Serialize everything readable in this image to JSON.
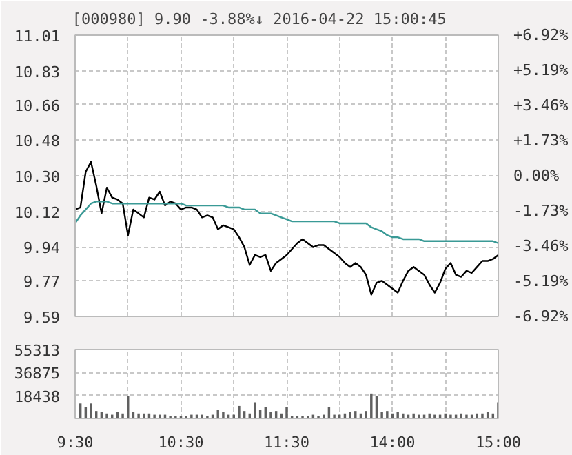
{
  "chart_data": [
    {
      "type": "line",
      "title": "[000980]   9.90   -3.88%↓   2016-04-22 15:00:45",
      "ylim": [
        9.59,
        11.01
      ],
      "categories": [
        null,
        null,
        null,
        null,
        null,
        null,
        null,
        null,
        null,
        null,
        null,
        null,
        null,
        null,
        null,
        null,
        null,
        null,
        null,
        null,
        null,
        null,
        null,
        null,
        null,
        null,
        null,
        null,
        null,
        null,
        null,
        null,
        null,
        null,
        null,
        null,
        null,
        null,
        null,
        null,
        null,
        null,
        null,
        null,
        null,
        null,
        null,
        null,
        null,
        null,
        null,
        null,
        null,
        null,
        null,
        null,
        null,
        null,
        null,
        null,
        null,
        null,
        null,
        null,
        null,
        null,
        null,
        null,
        null,
        null,
        null,
        null,
        null,
        null,
        null,
        null,
        null,
        null,
        null,
        null,
        null
      ],
      "yticks": [
        9.59,
        9.77,
        9.94,
        10.12,
        {
          "value": 10.3,
          "label": "10.30"
        },
        10.48,
        10.66,
        10.83,
        11.01
      ],
      "y2lim": [
        -6.92,
        6.92
      ],
      "y2ticks": [
        {
          "value": -6.92,
          "label": "-6.92%"
        },
        {
          "value": -5.19,
          "label": "-5.19%"
        },
        {
          "value": -3.46,
          "label": "-3.46%"
        },
        {
          "value": -1.73,
          "label": "-1.73%"
        },
        {
          "value": 0,
          "label": "0.00%"
        },
        {
          "value": 1.73,
          "label": "+1.73%"
        },
        {
          "value": 3.46,
          "label": "+3.46%"
        },
        {
          "value": 5.19,
          "label": "+5.19%"
        },
        {
          "value": 6.92,
          "label": "+6.92%"
        }
      ],
      "tick_labels": "y",
      "grid": true,
      "series": [
        {
          "color": "#000000",
          "values": [
            10.13,
            10.14,
            10.32,
            10.37,
            10.25,
            10.11,
            10.24,
            10.19,
            10.18,
            10.16,
            10.0,
            10.13,
            10.11,
            10.09,
            10.19,
            10.18,
            10.22,
            10.15,
            10.17,
            10.16,
            10.13,
            10.14,
            10.14,
            10.13,
            10.09,
            10.1,
            10.09,
            10.03,
            10.05,
            10.04,
            10.03,
            9.99,
            9.94,
            9.85,
            9.9,
            9.89,
            9.9,
            9.82,
            9.86,
            9.88,
            9.9,
            9.93,
            9.96,
            9.98,
            9.96,
            9.94,
            9.95,
            9.95,
            9.93,
            9.91,
            9.89,
            9.86,
            9.84,
            9.86,
            9.84,
            9.8,
            9.7,
            9.76,
            9.77,
            9.75,
            9.73,
            9.71,
            9.77,
            9.82,
            9.84,
            9.82,
            9.8,
            9.75,
            9.71,
            9.76,
            9.83,
            9.86,
            9.8,
            9.79,
            9.82,
            9.81,
            9.84,
            9.87,
            9.87,
            9.88,
            9.9
          ]
        },
        {
          "color": "#3a9a96",
          "values": [
            10.06,
            10.1,
            10.13,
            10.16,
            10.17,
            10.17,
            10.17,
            10.16,
            10.16,
            10.16,
            10.16,
            10.16,
            10.16,
            10.16,
            10.16,
            10.16,
            10.16,
            10.16,
            10.16,
            10.16,
            10.16,
            10.15,
            10.15,
            10.15,
            10.15,
            10.15,
            10.15,
            10.15,
            10.15,
            10.14,
            10.14,
            10.14,
            10.13,
            10.13,
            10.13,
            10.11,
            10.11,
            10.11,
            10.1,
            10.09,
            10.08,
            10.07,
            10.07,
            10.07,
            10.07,
            10.07,
            10.07,
            10.07,
            10.07,
            10.07,
            10.06,
            10.06,
            10.06,
            10.06,
            10.06,
            10.06,
            10.04,
            10.03,
            10.02,
            10.0,
            9.99,
            9.99,
            9.98,
            9.98,
            9.98,
            9.98,
            9.97,
            9.97,
            9.97,
            9.97,
            9.97,
            9.97,
            9.97,
            9.97,
            9.97,
            9.97,
            9.97,
            9.97,
            9.97,
            9.97,
            9.96
          ]
        }
      ]
    },
    {
      "type": "bar",
      "ylim": [
        0,
        55313
      ],
      "yticks": [
        18438,
        36875,
        55313
      ],
      "grid": true,
      "color": "#606060",
      "categories": [
        "9:30",
        null,
        null,
        null,
        null,
        null,
        null,
        null,
        null,
        null,
        null,
        null,
        null,
        null,
        null,
        null,
        null,
        null,
        null,
        null,
        "10:30",
        null,
        null,
        null,
        null,
        null,
        null,
        null,
        null,
        null,
        null,
        null,
        null,
        null,
        null,
        null,
        null,
        null,
        null,
        null,
        "11:30",
        null,
        null,
        null,
        null,
        null,
        null,
        null,
        null,
        null,
        null,
        null,
        null,
        null,
        null,
        null,
        null,
        null,
        null,
        null,
        "14:00",
        null,
        null,
        null,
        null,
        null,
        null,
        null,
        null,
        null,
        null,
        null,
        null,
        null,
        null,
        null,
        null,
        null,
        null,
        null,
        "15:00"
      ],
      "values": [
        55000,
        12000,
        9000,
        12000,
        6000,
        5000,
        4000,
        3000,
        5000,
        4000,
        18000,
        5000,
        4000,
        4000,
        4000,
        3000,
        3000,
        3000,
        2000,
        2000,
        2000,
        2000,
        3000,
        3000,
        3000,
        2000,
        3000,
        7000,
        5000,
        3000,
        3000,
        10000,
        6000,
        4000,
        13000,
        7000,
        9000,
        5000,
        6000,
        4000,
        9000,
        2000,
        2000,
        2000,
        2000,
        3000,
        2000,
        3000,
        9000,
        3000,
        3000,
        4000,
        5000,
        6000,
        4000,
        6000,
        20000,
        18000,
        5000,
        6000,
        4000,
        5000,
        4000,
        3000,
        4000,
        3000,
        3000,
        4000,
        3000,
        3000,
        4000,
        3000,
        3000,
        4000,
        3000,
        3000,
        4000,
        4000,
        5000,
        4000,
        13000
      ]
    }
  ]
}
